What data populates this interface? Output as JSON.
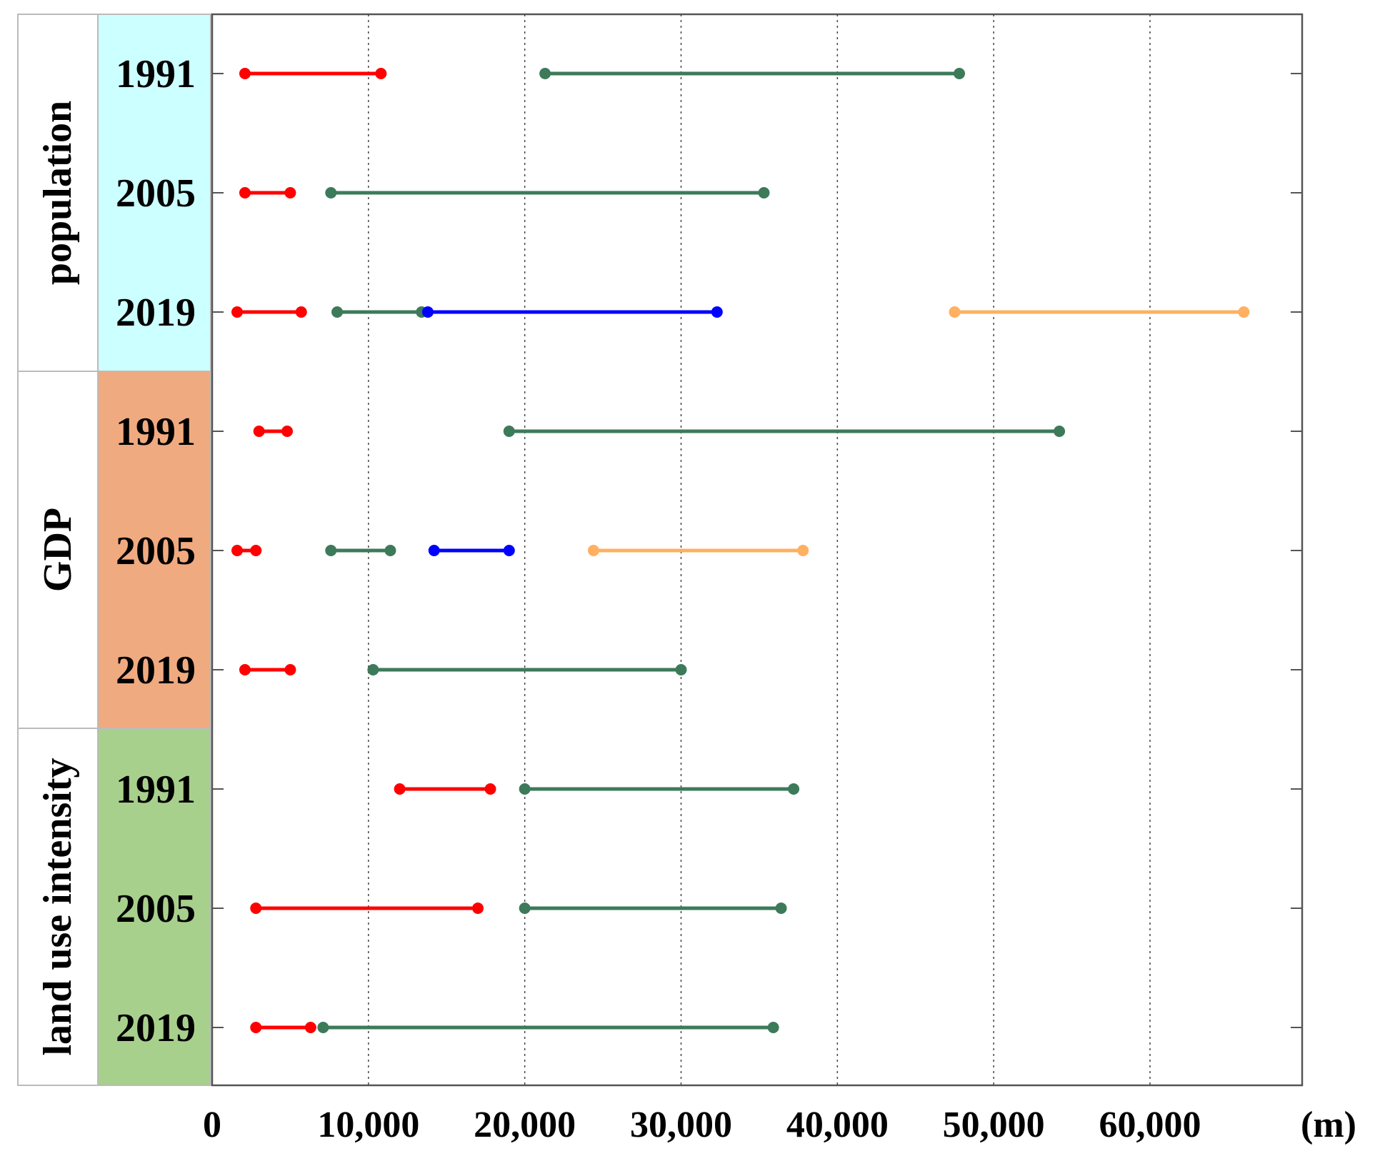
{
  "chart_data": {
    "type": "range",
    "x_unit": "(m)",
    "xlim": [
      0,
      70000
    ],
    "x_ticks": [
      0,
      10000,
      20000,
      30000,
      40000,
      50000,
      60000
    ],
    "x_tick_labels": [
      "0",
      "10,000",
      "20,000",
      "30,000",
      "40,000",
      "50,000",
      "60,000"
    ],
    "grid_x": true,
    "colors": {
      "red": "#ff0000",
      "green": "#3d7a5a",
      "blue": "#0000ff",
      "orange": "#ffb060",
      "population_bg": "#ccffff",
      "gdp_bg": "#f0aa80",
      "land_bg": "#a8d08d"
    },
    "groups": [
      {
        "name": "population",
        "color_key": "population_bg",
        "rows": [
          {
            "year": "1991",
            "segments": [
              {
                "color": "red",
                "start": 2100,
                "end": 10800
              },
              {
                "color": "green",
                "start": 21300,
                "end": 47800
              }
            ]
          },
          {
            "year": "2005",
            "segments": [
              {
                "color": "red",
                "start": 2100,
                "end": 5000
              },
              {
                "color": "green",
                "start": 7600,
                "end": 35300
              }
            ]
          },
          {
            "year": "2019",
            "segments": [
              {
                "color": "red",
                "start": 1600,
                "end": 5700
              },
              {
                "color": "green",
                "start": 8000,
                "end": 13400
              },
              {
                "color": "blue",
                "start": 13800,
                "end": 32300
              },
              {
                "color": "orange",
                "start": 47500,
                "end": 66000
              }
            ]
          }
        ]
      },
      {
        "name": "GDP",
        "color_key": "gdp_bg",
        "rows": [
          {
            "year": "1991",
            "segments": [
              {
                "color": "red",
                "start": 3000,
                "end": 4800
              },
              {
                "color": "green",
                "start": 19000,
                "end": 54200
              }
            ]
          },
          {
            "year": "2005",
            "segments": [
              {
                "color": "red",
                "start": 1600,
                "end": 2800
              },
              {
                "color": "green",
                "start": 7600,
                "end": 11400
              },
              {
                "color": "blue",
                "start": 14200,
                "end": 19000
              },
              {
                "color": "orange",
                "start": 24400,
                "end": 37800
              }
            ]
          },
          {
            "year": "2019",
            "segments": [
              {
                "color": "red",
                "start": 2100,
                "end": 5000
              },
              {
                "color": "green",
                "start": 10300,
                "end": 30000
              }
            ]
          }
        ]
      },
      {
        "name": "land use intensity",
        "color_key": "land_bg",
        "rows": [
          {
            "year": "1991",
            "segments": [
              {
                "color": "red",
                "start": 12000,
                "end": 17800
              },
              {
                "color": "green",
                "start": 20000,
                "end": 37200
              }
            ]
          },
          {
            "year": "2005",
            "segments": [
              {
                "color": "red",
                "start": 2800,
                "end": 17000
              },
              {
                "color": "green",
                "start": 20000,
                "end": 36400
              }
            ]
          },
          {
            "year": "2019",
            "segments": [
              {
                "color": "red",
                "start": 2800,
                "end": 6300
              },
              {
                "color": "green",
                "start": 7100,
                "end": 35900
              }
            ]
          }
        ]
      }
    ]
  }
}
